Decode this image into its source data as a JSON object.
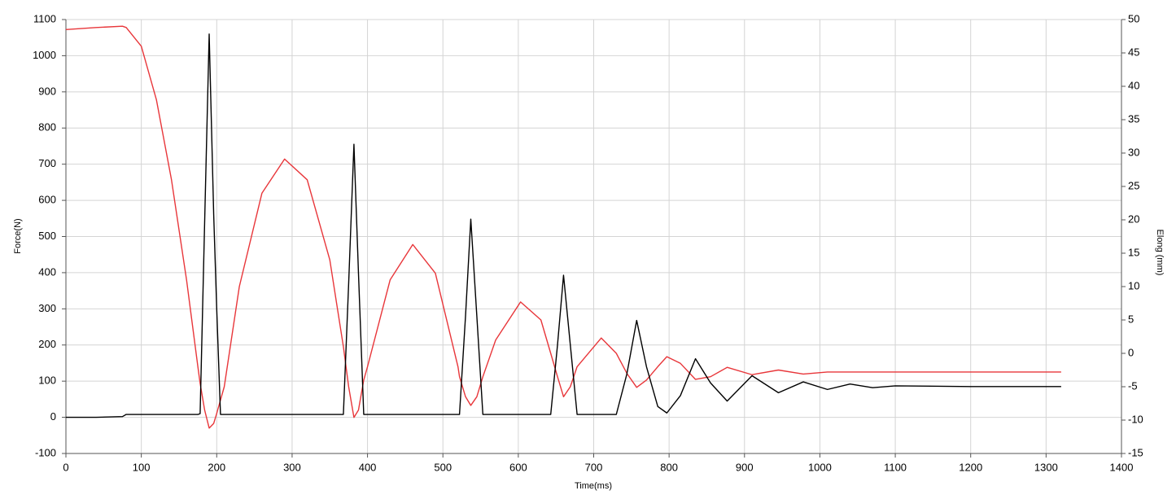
{
  "chart_data": {
    "type": "line",
    "x_label": "Time(ms)",
    "y_label": "Force(N)",
    "y2_label": "Elong (mm)",
    "x": [
      0,
      40,
      75,
      80,
      100,
      120,
      140,
      160,
      175,
      178,
      184,
      190,
      196,
      200,
      205,
      210,
      230,
      260,
      290,
      320,
      350,
      368,
      375,
      382,
      388,
      395,
      400,
      430,
      460,
      490,
      520,
      522,
      530,
      537,
      545,
      553,
      570,
      603,
      630,
      643,
      652,
      660,
      669,
      678,
      710,
      730,
      744,
      757,
      770,
      785,
      797,
      815,
      835,
      855,
      877,
      910,
      945,
      978,
      1010,
      1040,
      1070,
      1100,
      1200,
      1320
    ],
    "series": [
      {
        "color": "#000000",
        "values": [
          0,
          0,
          2,
          8,
          8,
          8,
          8,
          8,
          8,
          10,
          540,
          1060,
          560,
          300,
          8,
          8,
          8,
          8,
          8,
          8,
          8,
          8,
          370,
          755,
          400,
          8,
          8,
          8,
          8,
          8,
          8,
          8,
          280,
          548,
          280,
          8,
          8,
          8,
          8,
          8,
          200,
          393,
          200,
          8,
          8,
          8,
          120,
          268,
          140,
          30,
          12,
          60,
          162,
          95,
          45,
          115,
          68,
          98,
          77,
          92,
          82,
          87,
          85,
          85
        ]
      },
      {
        "color": "#e8363a",
        "axis": "y2",
        "values": [
          48.5,
          48.8,
          49,
          48.8,
          46,
          38,
          26,
          11,
          -2,
          -4.5,
          -8.5,
          -11.2,
          -10.5,
          -9,
          -7,
          -5,
          10,
          24,
          29.1,
          26,
          14,
          1,
          -5,
          -9.6,
          -8.5,
          -4,
          -2,
          11,
          16.3,
          12,
          -2,
          -3.5,
          -6.5,
          -7.8,
          -6.5,
          -3.5,
          2,
          7.7,
          5,
          0,
          -3.5,
          -6.5,
          -5,
          -2,
          2.3,
          0,
          -3,
          -5.1,
          -4,
          -2,
          -0.5,
          -1.5,
          -3.9,
          -3.5,
          -2.1,
          -3.2,
          -2.5,
          -3.1,
          -2.8,
          -2.8,
          -2.8,
          -2.8,
          -2.8,
          -2.8
        ]
      }
    ],
    "xlim": [
      0,
      1400
    ],
    "xticks": [
      0,
      100,
      200,
      300,
      400,
      500,
      600,
      700,
      800,
      900,
      1000,
      1100,
      1200,
      1300,
      1400
    ],
    "ylim": [
      -100,
      1100
    ],
    "yticks": [
      -100,
      0,
      100,
      200,
      300,
      400,
      500,
      600,
      700,
      800,
      900,
      1000,
      1100
    ],
    "y2lim": [
      -15,
      50
    ],
    "y2ticks": [
      -15,
      -10,
      -5,
      0,
      5,
      10,
      15,
      20,
      25,
      30,
      35,
      40,
      45,
      50
    ],
    "grid": true
  }
}
